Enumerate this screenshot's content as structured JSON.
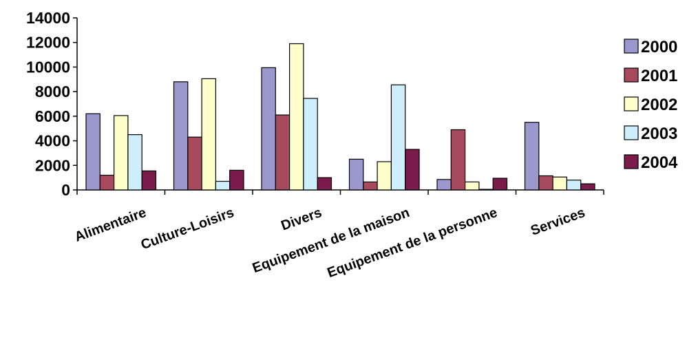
{
  "chart_data": {
    "type": "bar",
    "title": "",
    "xlabel": "",
    "ylabel": "",
    "ylim": [
      0,
      14000
    ],
    "yticks": [
      "0",
      "2000",
      "4000",
      "6000",
      "8000",
      "10000",
      "12000",
      "14000"
    ],
    "grid": false,
    "legend_position": "right",
    "categories": [
      "Alimentaire",
      "Culture-Loisirs",
      "Divers",
      "Equipement de la maison",
      "Equipement de la personne",
      "Services"
    ],
    "series": [
      {
        "name": "2000",
        "color": "#9a98cc",
        "values": [
          6200,
          8800,
          9950,
          2500,
          850,
          5500
        ]
      },
      {
        "name": "2001",
        "color": "#a84a5e",
        "values": [
          1200,
          4300,
          6100,
          650,
          4900,
          1150
        ]
      },
      {
        "name": "2002",
        "color": "#ffffcc",
        "values": [
          6050,
          9050,
          11900,
          2300,
          650,
          1050
        ]
      },
      {
        "name": "2003",
        "color": "#cdeefa",
        "values": [
          4500,
          700,
          7450,
          8550,
          50,
          800
        ]
      },
      {
        "name": "2004",
        "color": "#7a1b4b",
        "values": [
          1550,
          1600,
          1000,
          3300,
          950,
          500
        ]
      }
    ]
  }
}
